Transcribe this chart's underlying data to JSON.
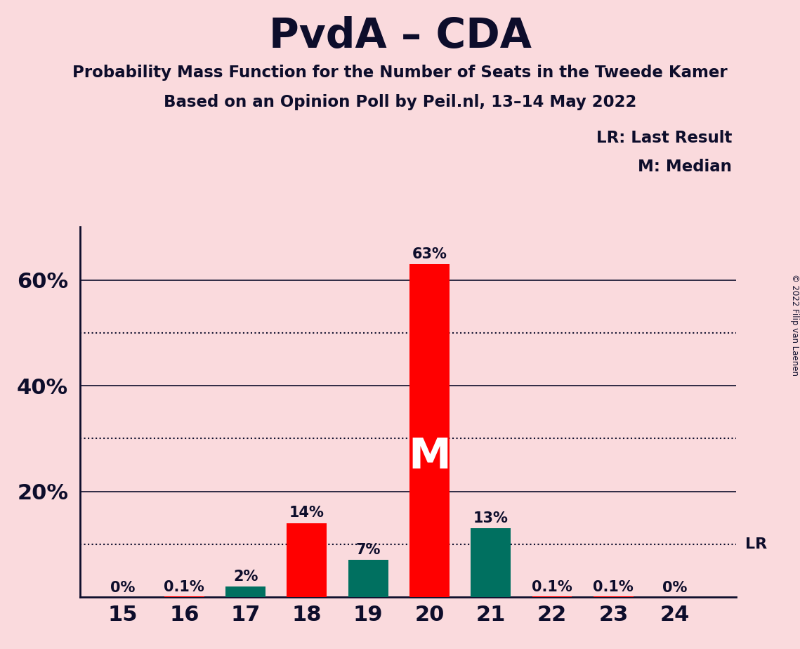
{
  "title": "PvdA – CDA",
  "subtitle1": "Probability Mass Function for the Number of Seats in the Tweede Kamer",
  "subtitle2": "Based on an Opinion Poll by Peil.nl, 13–14 May 2022",
  "copyright": "© 2022 Filip van Laenen",
  "categories": [
    15,
    16,
    17,
    18,
    19,
    20,
    21,
    22,
    23,
    24
  ],
  "values": [
    0.0,
    0.001,
    0.02,
    0.14,
    0.07,
    0.63,
    0.13,
    0.001,
    0.001,
    0.0
  ],
  "labels": [
    "0%",
    "0.1%",
    "2%",
    "14%",
    "7%",
    "63%",
    "13%",
    "0.1%",
    "0.1%",
    "0%"
  ],
  "bar_colors": [
    "#FF0000",
    "#FF0000",
    "#007060",
    "#FF0000",
    "#007060",
    "#FF0000",
    "#007060",
    "#FF0000",
    "#FF0000",
    "#FF0000"
  ],
  "median_seat": 20,
  "lr_value": 0.1,
  "background_color": "#FADADD",
  "red_color": "#FF0000",
  "green_color": "#007060",
  "text_color": "#0D0D2B",
  "yticks": [
    0.2,
    0.4,
    0.6
  ],
  "ytick_labels": [
    "20%",
    "40%",
    "60%"
  ],
  "solid_yticks": [
    0.2,
    0.4,
    0.6
  ],
  "dotted_yticks": [
    0.1,
    0.3,
    0.5
  ],
  "ylim": [
    0,
    0.7
  ],
  "xlim": [
    14.3,
    25.0
  ],
  "bar_width": 0.65
}
